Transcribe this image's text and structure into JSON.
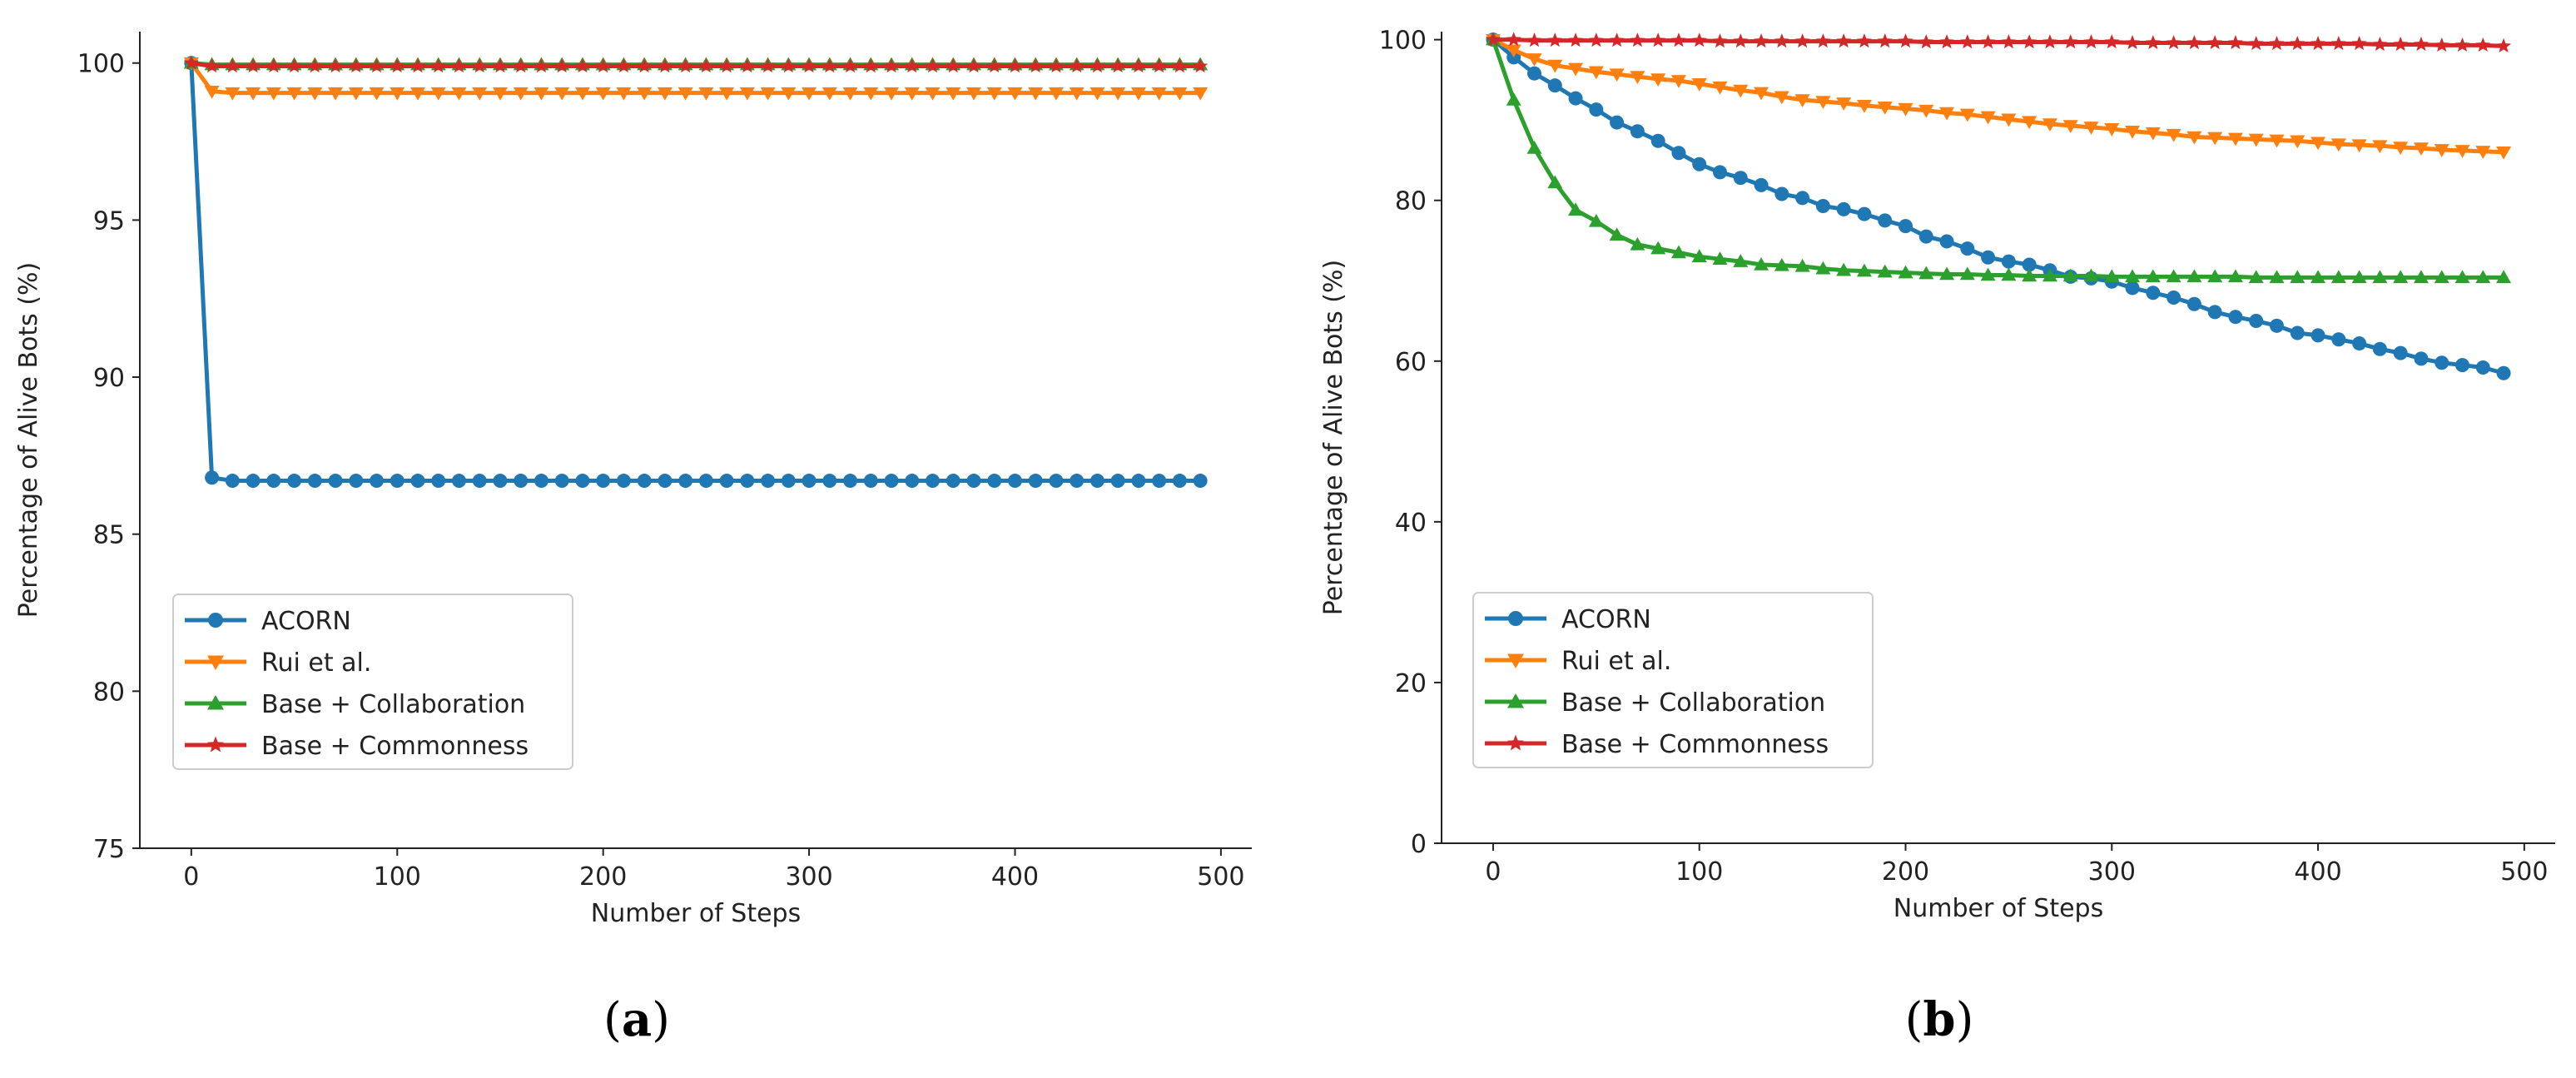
{
  "colors": {
    "ACORN": "#1f77b4",
    "Rui et al.": "#ff7f0e",
    "Base + Collaboration": "#2ca02c",
    "Base + Commonness": "#d62728"
  },
  "chart_data": [
    {
      "type": "line",
      "panel": "(a)",
      "panel_letter": "a",
      "xlabel": "Number of Steps",
      "ylabel": "Percentage of Alive Bots (%)",
      "xlim": [
        -25,
        515
      ],
      "ylim": [
        75,
        101
      ],
      "xticks": [
        0,
        100,
        200,
        300,
        400,
        500
      ],
      "yticks": [
        75,
        80,
        85,
        90,
        95,
        100
      ],
      "xtick_labels": [
        "0",
        "100",
        "200",
        "300",
        "400",
        "500"
      ],
      "ytick_labels": [
        "75",
        "80",
        "85",
        "90",
        "95",
        "100"
      ],
      "legend_position": "lower-left",
      "x": [
        0,
        10,
        20,
        30,
        40,
        50,
        60,
        70,
        80,
        90,
        100,
        110,
        120,
        130,
        140,
        150,
        160,
        170,
        180,
        190,
        200,
        210,
        220,
        230,
        240,
        250,
        260,
        270,
        280,
        290,
        300,
        310,
        320,
        330,
        340,
        350,
        360,
        370,
        380,
        390,
        400,
        410,
        420,
        430,
        440,
        450,
        460,
        470,
        480,
        490
      ],
      "series": [
        {
          "name": "ACORN",
          "marker": "circle",
          "values": [
            100,
            86.8,
            86.7,
            86.7,
            86.7,
            86.7,
            86.7,
            86.7,
            86.7,
            86.7,
            86.7,
            86.7,
            86.7,
            86.7,
            86.7,
            86.7,
            86.7,
            86.7,
            86.7,
            86.7,
            86.7,
            86.7,
            86.7,
            86.7,
            86.7,
            86.7,
            86.7,
            86.7,
            86.7,
            86.7,
            86.7,
            86.7,
            86.7,
            86.7,
            86.7,
            86.7,
            86.7,
            86.7,
            86.7,
            86.7,
            86.7,
            86.7,
            86.7,
            86.7,
            86.7,
            86.7,
            86.7,
            86.7,
            86.7,
            86.7
          ]
        },
        {
          "name": "Rui et al.",
          "marker": "triangle-down",
          "values": [
            100,
            99.1,
            99.05,
            99.05,
            99.05,
            99.05,
            99.05,
            99.05,
            99.05,
            99.05,
            99.05,
            99.05,
            99.05,
            99.05,
            99.05,
            99.05,
            99.05,
            99.05,
            99.05,
            99.05,
            99.05,
            99.05,
            99.05,
            99.05,
            99.05,
            99.05,
            99.05,
            99.05,
            99.05,
            99.05,
            99.05,
            99.05,
            99.05,
            99.05,
            99.05,
            99.05,
            99.05,
            99.05,
            99.05,
            99.05,
            99.05,
            99.05,
            99.05,
            99.05,
            99.05,
            99.05,
            99.05,
            99.05,
            99.05,
            99.05
          ]
        },
        {
          "name": "Base + Collaboration",
          "marker": "triangle-up",
          "values": [
            100,
            99.95,
            99.95,
            99.95,
            99.95,
            99.95,
            99.95,
            99.95,
            99.95,
            99.95,
            99.95,
            99.95,
            99.95,
            99.95,
            99.95,
            99.95,
            99.95,
            99.95,
            99.95,
            99.95,
            99.95,
            99.95,
            99.95,
            99.95,
            99.95,
            99.95,
            99.95,
            99.95,
            99.95,
            99.95,
            99.95,
            99.95,
            99.95,
            99.95,
            99.95,
            99.95,
            99.95,
            99.95,
            99.95,
            99.95,
            99.95,
            99.95,
            99.95,
            99.95,
            99.95,
            99.95,
            99.95,
            99.95,
            99.95,
            99.95
          ]
        },
        {
          "name": "Base + Commonness",
          "marker": "star",
          "values": [
            100,
            99.9,
            99.9,
            99.9,
            99.9,
            99.9,
            99.9,
            99.9,
            99.9,
            99.9,
            99.9,
            99.9,
            99.9,
            99.9,
            99.9,
            99.9,
            99.9,
            99.9,
            99.9,
            99.9,
            99.9,
            99.9,
            99.9,
            99.9,
            99.9,
            99.9,
            99.9,
            99.9,
            99.9,
            99.9,
            99.9,
            99.9,
            99.9,
            99.9,
            99.9,
            99.9,
            99.9,
            99.9,
            99.9,
            99.9,
            99.9,
            99.9,
            99.9,
            99.9,
            99.9,
            99.9,
            99.9,
            99.9,
            99.9,
            99.9
          ]
        }
      ]
    },
    {
      "type": "line",
      "panel": "(b)",
      "panel_letter": "b",
      "xlabel": "Number of Steps",
      "ylabel": "Percentage of Alive Bots (%)",
      "xlim": [
        -25,
        515
      ],
      "ylim": [
        0,
        101
      ],
      "xticks": [
        0,
        100,
        200,
        300,
        400,
        500
      ],
      "yticks": [
        0,
        20,
        40,
        60,
        80,
        100
      ],
      "xtick_labels": [
        "0",
        "100",
        "200",
        "300",
        "400",
        "500"
      ],
      "ytick_labels": [
        "0",
        "20",
        "40",
        "60",
        "80",
        "100"
      ],
      "legend_position": "lower-left",
      "x": [
        0,
        10,
        20,
        30,
        40,
        50,
        60,
        70,
        80,
        90,
        100,
        110,
        120,
        130,
        140,
        150,
        160,
        170,
        180,
        190,
        200,
        210,
        220,
        230,
        240,
        250,
        260,
        270,
        280,
        290,
        300,
        310,
        320,
        330,
        340,
        350,
        360,
        370,
        380,
        390,
        400,
        410,
        420,
        430,
        440,
        450,
        460,
        470,
        480,
        490
      ],
      "series": [
        {
          "name": "ACORN",
          "marker": "circle",
          "values": [
            100,
            97.8,
            95.8,
            94.3,
            92.7,
            91.3,
            89.7,
            88.6,
            87.4,
            85.9,
            84.5,
            83.5,
            82.8,
            81.9,
            80.8,
            80.3,
            79.3,
            78.9,
            78.3,
            77.5,
            76.8,
            75.5,
            74.9,
            74.0,
            72.9,
            72.4,
            72.0,
            71.3,
            70.5,
            70.3,
            69.9,
            69.1,
            68.5,
            67.9,
            67.1,
            66.1,
            65.5,
            65.0,
            64.4,
            63.5,
            63.2,
            62.7,
            62.2,
            61.5,
            61.0,
            60.3,
            59.8,
            59.5,
            59.2,
            58.5
          ]
        },
        {
          "name": "Rui et al.",
          "marker": "triangle-down",
          "values": [
            100,
            98.7,
            97.6,
            96.8,
            96.4,
            96.0,
            95.7,
            95.4,
            95.1,
            94.9,
            94.5,
            94.1,
            93.7,
            93.4,
            92.9,
            92.5,
            92.3,
            92.1,
            91.8,
            91.6,
            91.4,
            91.2,
            90.9,
            90.7,
            90.4,
            90.1,
            89.8,
            89.5,
            89.3,
            89.1,
            88.9,
            88.6,
            88.4,
            88.2,
            87.9,
            87.8,
            87.7,
            87.6,
            87.5,
            87.4,
            87.2,
            87.0,
            86.9,
            86.8,
            86.6,
            86.5,
            86.3,
            86.2,
            86.1,
            86.0
          ]
        },
        {
          "name": "Base + Collaboration",
          "marker": "triangle-up",
          "values": [
            100,
            92.5,
            86.5,
            82.2,
            78.8,
            77.4,
            75.7,
            74.5,
            74.0,
            73.5,
            73.0,
            72.7,
            72.4,
            72.0,
            71.9,
            71.8,
            71.5,
            71.3,
            71.2,
            71.1,
            71.0,
            70.9,
            70.8,
            70.8,
            70.7,
            70.7,
            70.6,
            70.6,
            70.6,
            70.6,
            70.5,
            70.5,
            70.5,
            70.5,
            70.5,
            70.5,
            70.5,
            70.4,
            70.4,
            70.4,
            70.4,
            70.4,
            70.4,
            70.4,
            70.4,
            70.4,
            70.4,
            70.4,
            70.4,
            70.4
          ]
        },
        {
          "name": "Base + Commonness",
          "marker": "star",
          "values": [
            100,
            100,
            99.9,
            99.9,
            99.9,
            99.9,
            99.9,
            99.9,
            99.9,
            99.9,
            99.9,
            99.8,
            99.8,
            99.8,
            99.8,
            99.8,
            99.8,
            99.8,
            99.8,
            99.8,
            99.8,
            99.7,
            99.7,
            99.7,
            99.7,
            99.7,
            99.7,
            99.7,
            99.7,
            99.7,
            99.7,
            99.6,
            99.6,
            99.6,
            99.6,
            99.6,
            99.6,
            99.5,
            99.5,
            99.5,
            99.5,
            99.5,
            99.5,
            99.4,
            99.4,
            99.4,
            99.3,
            99.3,
            99.3,
            99.2
          ]
        }
      ]
    }
  ]
}
